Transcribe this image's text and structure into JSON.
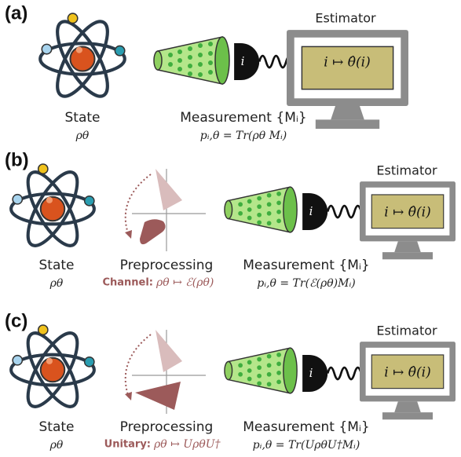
{
  "panels": [
    {
      "label": "(a)",
      "state": {
        "label": "State",
        "symbol": "ρθ"
      },
      "measurement": {
        "label": "Measurement {Mᵢ}",
        "formula": "pᵢ,θ = Tr(ρθ Mᵢ)"
      },
      "detector": "i",
      "estimator": {
        "title": "Estimator",
        "map": "i ↦ θ̂(i)"
      }
    },
    {
      "label": "(b)",
      "state": {
        "label": "State",
        "symbol": "ρθ"
      },
      "preprocessing": {
        "label": "Preprocessing",
        "kind": "Channel:",
        "map": "ρθ ↦ ℰ(ρθ)"
      },
      "measurement": {
        "label": "Measurement {Mᵢ}",
        "formula": "pᵢ,θ = Tr(ℰ(ρθ)Mᵢ)"
      },
      "detector": "i",
      "estimator": {
        "title": "Estimator",
        "map": "i ↦ θ̂(i)"
      }
    },
    {
      "label": "(c)",
      "state": {
        "label": "State",
        "symbol": "ρθ"
      },
      "preprocessing": {
        "label": "Preprocessing",
        "kind": "Unitary:",
        "map": "ρθ ↦ UρθU†"
      },
      "measurement": {
        "label": "Measurement {Mᵢ}",
        "formula": "pᵢ,θ = Tr(UρθU†Mᵢ)"
      },
      "detector": "i",
      "estimator": {
        "title": "Estimator",
        "map": "i ↦ θ̂(i)"
      }
    }
  ]
}
